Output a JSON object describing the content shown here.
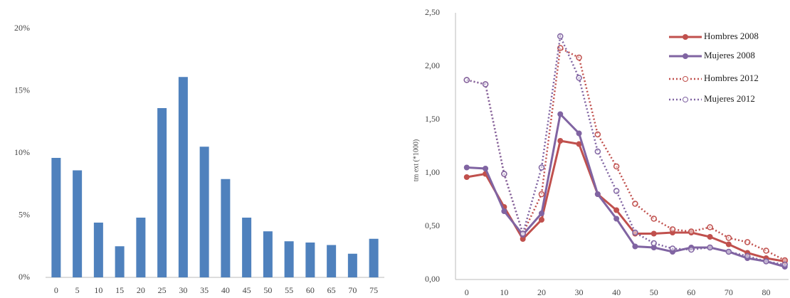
{
  "chart_data": [
    {
      "type": "bar",
      "categories": [
        "0",
        "5",
        "10",
        "15",
        "20",
        "25",
        "30",
        "35",
        "40",
        "45",
        "50",
        "55",
        "60",
        "65",
        "70",
        "75"
      ],
      "values": [
        9.6,
        8.6,
        4.4,
        2.5,
        4.8,
        13.6,
        16.1,
        10.5,
        7.9,
        4.8,
        3.7,
        2.9,
        2.8,
        2.6,
        1.9,
        3.1
      ],
      "color": "#4f81bd",
      "ylim": [
        0,
        20
      ],
      "yticks": [
        {
          "value": 0,
          "label": "0%"
        },
        {
          "value": 5,
          "label": "5%"
        },
        {
          "value": 10,
          "label": "10%"
        },
        {
          "value": 15,
          "label": "15%"
        },
        {
          "value": 20,
          "label": "20%"
        }
      ],
      "grid": false
    },
    {
      "type": "line",
      "y_label": "tm ext (*1000)",
      "x": [
        0,
        5,
        10,
        15,
        20,
        25,
        30,
        35,
        40,
        45,
        50,
        55,
        60,
        65,
        70,
        75,
        80,
        85
      ],
      "series": [
        {
          "name": "Hombres 2008",
          "color": "#c0504d",
          "style": "solid",
          "values": [
            0.96,
            0.99,
            0.68,
            0.38,
            0.56,
            1.3,
            1.27,
            0.8,
            0.65,
            0.43,
            0.43,
            0.44,
            0.44,
            0.4,
            0.33,
            0.25,
            0.2,
            0.17
          ]
        },
        {
          "name": "Mujeres 2008",
          "color": "#8064a2",
          "style": "solid",
          "values": [
            1.05,
            1.04,
            0.64,
            0.42,
            0.62,
            1.55,
            1.37,
            0.8,
            0.57,
            0.31,
            0.3,
            0.26,
            0.3,
            0.3,
            0.26,
            0.2,
            0.17,
            0.12
          ]
        },
        {
          "name": "Hombres 2012",
          "color": "#c0504d",
          "style": "dotted",
          "values": [
            1.87,
            1.83,
            0.99,
            0.43,
            0.8,
            2.17,
            2.08,
            1.36,
            1.06,
            0.71,
            0.57,
            0.47,
            0.45,
            0.49,
            0.39,
            0.35,
            0.27,
            0.18
          ]
        },
        {
          "name": "Mujeres 2012",
          "color": "#8064a2",
          "style": "dotted",
          "values": [
            1.87,
            1.83,
            0.99,
            0.43,
            1.05,
            2.28,
            1.89,
            1.2,
            0.83,
            0.44,
            0.34,
            0.29,
            0.28,
            0.3,
            0.26,
            0.22,
            0.17,
            0.14
          ]
        }
      ],
      "xlim": [
        -3,
        86
      ],
      "xticks": [
        0,
        10,
        20,
        30,
        40,
        50,
        60,
        70,
        80
      ],
      "ylim": [
        0,
        2.5
      ],
      "yticks": [
        {
          "value": 0,
          "label": "0,00"
        },
        {
          "value": 0.5,
          "label": "0,50"
        },
        {
          "value": 1,
          "label": "1,00"
        },
        {
          "value": 1.5,
          "label": "1,50"
        },
        {
          "value": 2,
          "label": "2,00"
        },
        {
          "value": 2.5,
          "label": "2,50"
        }
      ],
      "legend": "upper right"
    }
  ]
}
